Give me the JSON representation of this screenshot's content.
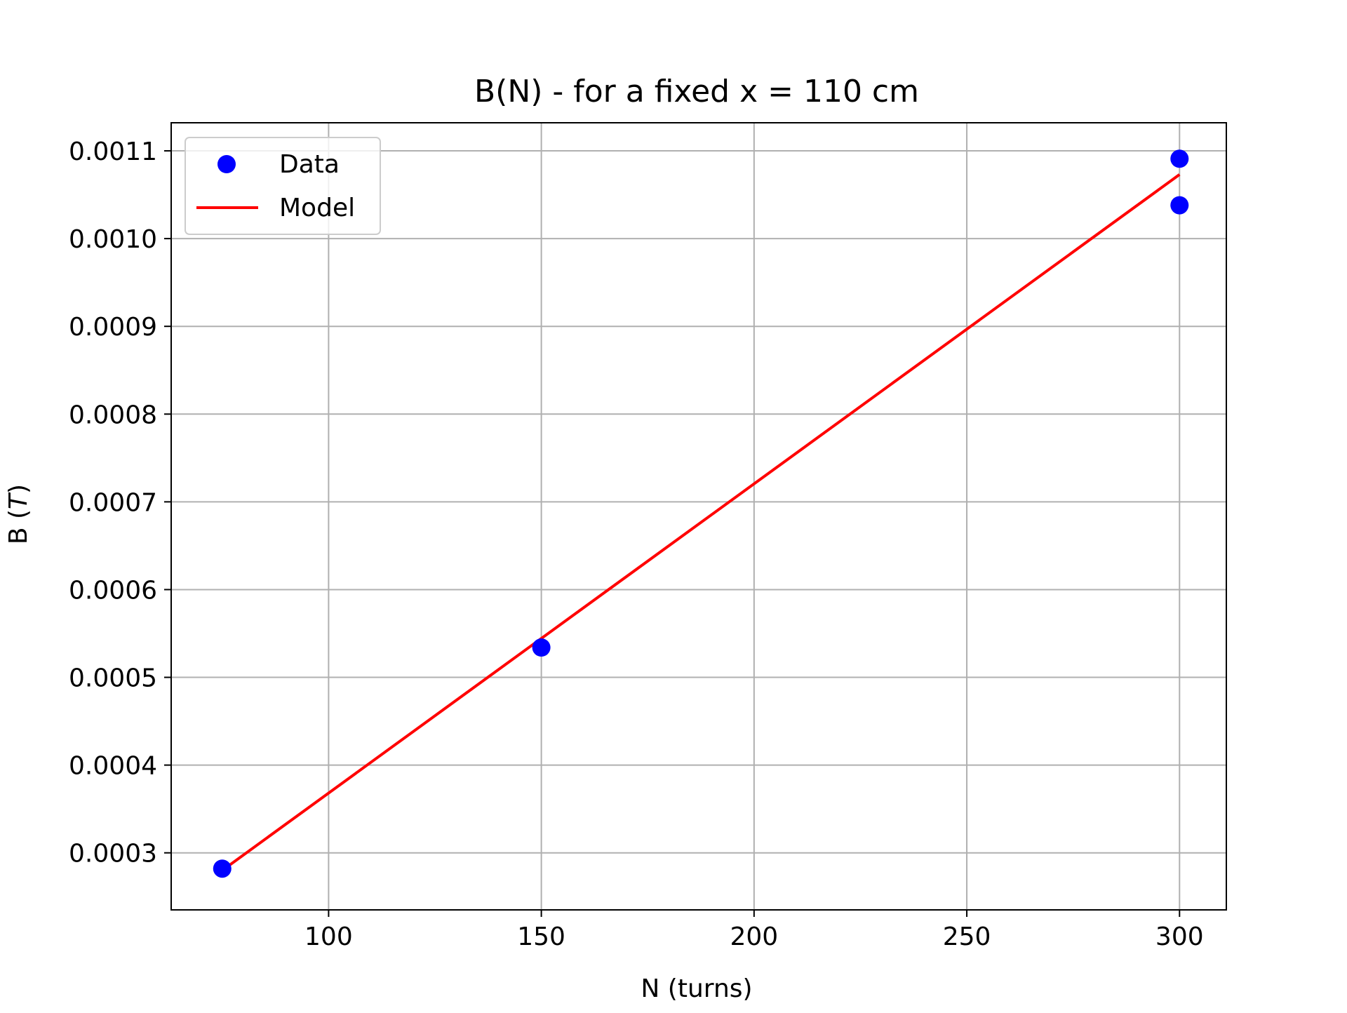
{
  "chart_data": {
    "type": "scatter",
    "title": "B(N) - for a fixed x = 110 cm",
    "xlabel": "N (turns)",
    "ylabel_prefix": "B (",
    "ylabel_unit": "T",
    "ylabel_suffix": ")",
    "xlim": [
      63,
      311
    ],
    "ylim": [
      0.000235,
      0.001132
    ],
    "xticks": [
      100,
      150,
      200,
      250,
      300
    ],
    "yticks": [
      0.0003,
      0.0004,
      0.0005,
      0.0006,
      0.0007,
      0.0008,
      0.0009,
      0.001,
      0.0011
    ],
    "ytick_labels": [
      "0.0003",
      "0.0004",
      "0.0005",
      "0.0006",
      "0.0007",
      "0.0008",
      "0.0009",
      "0.0010",
      "0.0011"
    ],
    "grid": true,
    "legend": "upper left",
    "series": [
      {
        "name": "Data",
        "kind": "scatter",
        "color": "#0000ff",
        "points": [
          [
            75,
            0.000282
          ],
          [
            150,
            0.000534
          ],
          [
            300,
            0.001091
          ],
          [
            300,
            0.001038
          ]
        ]
      },
      {
        "name": "Model",
        "kind": "line",
        "color": "#ff0000",
        "points": [
          [
            75,
            0.00028
          ],
          [
            300,
            0.001073
          ]
        ]
      }
    ]
  }
}
